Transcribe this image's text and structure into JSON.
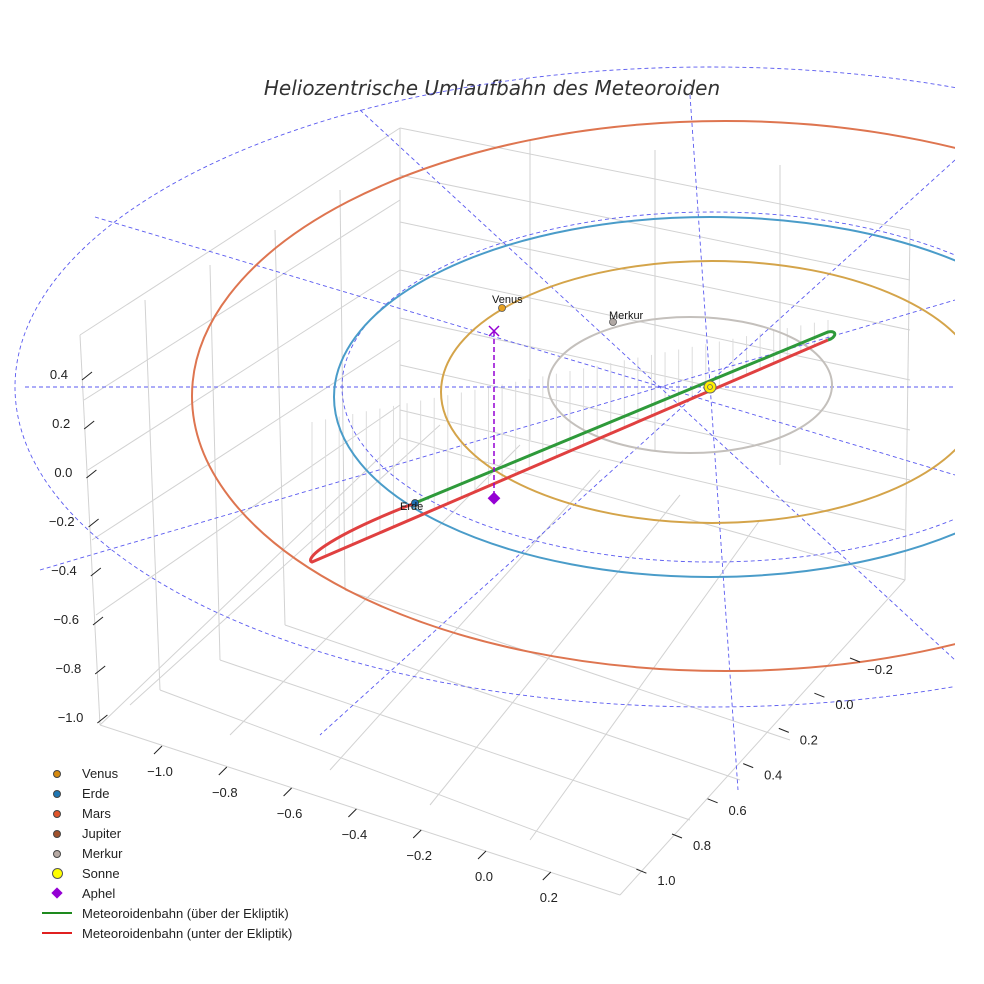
{
  "title": "Heliozentrische Umlaufbahn des Meteoroiden",
  "colors": {
    "venus": "#e6a020",
    "venus_orbit": "#d4a44a",
    "erde": "#1f6fb4",
    "erde_orbit": "#4a9cc9",
    "mars": "#e06030",
    "mars_orbit": "#de7550",
    "jupiter": "#a0522d",
    "merkur": "#b0a8a4",
    "merkur_orbit": "#c4c0bc",
    "sonne": "#ffee00",
    "aphel": "#9400d3",
    "meteor_above": "#2e9a3a",
    "meteor_below": "#e04040",
    "guide": "#5a5af0",
    "grid": "#cfcfcf"
  },
  "planet_labels": {
    "venus": "Venus",
    "merkur": "Merkur",
    "erde": "Erde"
  },
  "chart_data": {
    "type": "scatter3d",
    "title": "Heliozentrische Umlaufbahn des Meteoroiden",
    "axes": {
      "x": {
        "ticks": [
          -1.0,
          -0.8,
          -0.6,
          -0.4,
          -0.2,
          0.0,
          0.2
        ],
        "tick_labels": [
          "−1.0",
          "−0.8",
          "−0.6",
          "−0.4",
          "−0.2",
          "0.0",
          "0.2"
        ]
      },
      "y": {
        "ticks": [
          -0.2,
          0.0,
          0.2,
          0.4,
          0.6,
          0.8,
          1.0
        ],
        "tick_labels": [
          "−0.2",
          "0.0",
          "0.2",
          "0.4",
          "0.6",
          "0.8",
          "1.0"
        ]
      },
      "z": {
        "ticks": [
          0.4,
          0.2,
          0.0,
          -0.2,
          -0.4,
          -0.6,
          -0.8,
          -1.0
        ],
        "tick_labels": [
          "0.4",
          "0.2",
          "0.0",
          "−0.2",
          "−0.4",
          "−0.6",
          "−0.8",
          "−1.0"
        ]
      }
    },
    "orbits_au": {
      "Merkur": 0.39,
      "Venus": 0.72,
      "Erde": 1.0,
      "Mars": 1.52
    },
    "sun_position": [
      0,
      0,
      0
    ],
    "aphel_label": "Aphel",
    "legend": [
      {
        "label": "Venus",
        "symbol": "dot",
        "color": "#d68a10"
      },
      {
        "label": "Erde",
        "symbol": "dot",
        "color": "#1f77b4"
      },
      {
        "label": "Mars",
        "symbol": "dot",
        "color": "#e0552b"
      },
      {
        "label": "Jupiter",
        "symbol": "dot",
        "color": "#a0522d"
      },
      {
        "label": "Merkur",
        "symbol": "dot",
        "color": "#b7aaa4"
      },
      {
        "label": "Sonne",
        "symbol": "dot-big",
        "color": "#ffff00"
      },
      {
        "label": "Aphel",
        "symbol": "diamond",
        "color": "#9400d3"
      },
      {
        "label": "Meteoroidenbahn (über der Ekliptik)",
        "symbol": "line",
        "color": "#1e8a1e"
      },
      {
        "label": "Meteoroidenbahn (unter der Ekliptik)",
        "symbol": "line",
        "color": "#e02020"
      }
    ]
  }
}
